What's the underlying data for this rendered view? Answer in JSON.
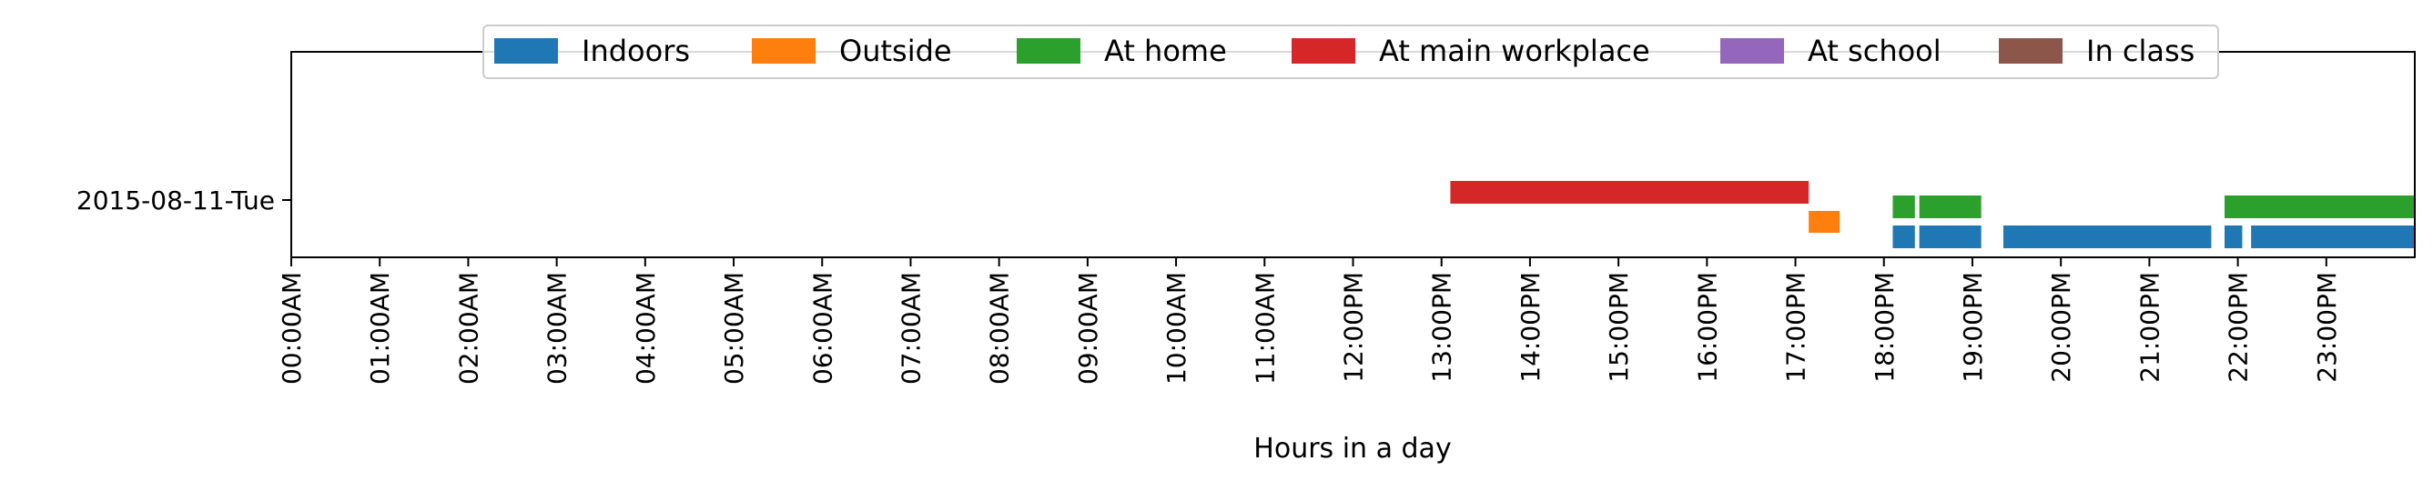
{
  "chart_data": {
    "type": "timeline",
    "xlabel": "Hours in a day",
    "x_tick_labels": [
      "00:00AM",
      "01:00AM",
      "02:00AM",
      "03:00AM",
      "04:00AM",
      "05:00AM",
      "06:00AM",
      "07:00AM",
      "08:00AM",
      "09:00AM",
      "10:00AM",
      "11:00AM",
      "12:00PM",
      "13:00PM",
      "14:00PM",
      "15:00PM",
      "16:00PM",
      "17:00PM",
      "18:00PM",
      "19:00PM",
      "20:00PM",
      "21:00PM",
      "22:00PM",
      "23:00PM"
    ],
    "xlim": [
      0,
      24
    ],
    "y_categories": [
      "2015-08-11-Tue"
    ],
    "legend_position": "upper center",
    "series": [
      {
        "name": "Indoors",
        "color": "#1f77b4",
        "intervals": [
          [
            18.1,
            18.35
          ],
          [
            18.4,
            19.1
          ],
          [
            19.35,
            21.7
          ],
          [
            21.85,
            22.05
          ],
          [
            22.15,
            24.0
          ]
        ]
      },
      {
        "name": "Outside",
        "color": "#ff7f0e",
        "intervals": [
          [
            17.15,
            17.5
          ]
        ]
      },
      {
        "name": "At home",
        "color": "#2ca02c",
        "intervals": [
          [
            18.1,
            18.35
          ],
          [
            18.4,
            19.1
          ],
          [
            21.85,
            24.0
          ]
        ]
      },
      {
        "name": "At main workplace",
        "color": "#d62728",
        "intervals": [
          [
            13.1,
            17.15
          ]
        ]
      },
      {
        "name": "At school",
        "color": "#9467bd",
        "intervals": []
      },
      {
        "name": "In class",
        "color": "#8c564b",
        "intervals": []
      }
    ]
  }
}
